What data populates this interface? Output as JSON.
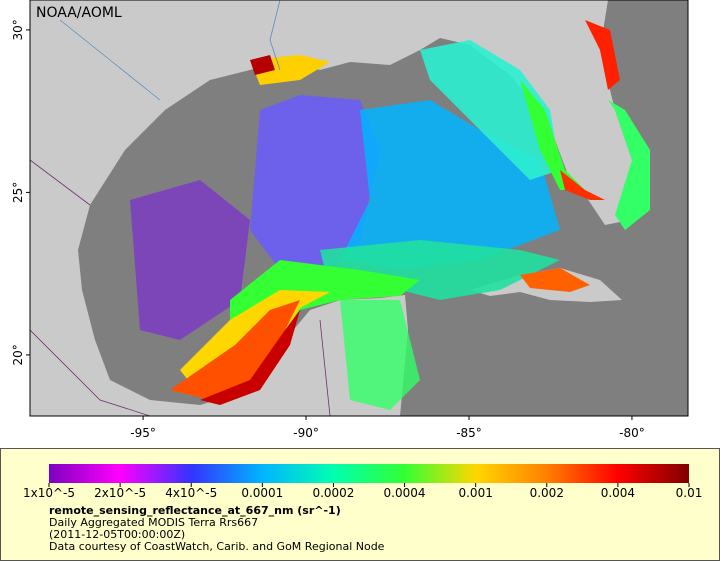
{
  "map": {
    "credit": "NOAA/AOML",
    "xlim": [
      -98.47,
      -78.28
    ],
    "ylim": [
      18.12,
      30.92
    ],
    "xticks": [
      {
        "value": -95,
        "label": "-95°"
      },
      {
        "value": -90,
        "label": "-90°"
      },
      {
        "value": -85,
        "label": "-85°"
      },
      {
        "value": -80,
        "label": "-80°"
      }
    ],
    "yticks": [
      {
        "value": 20,
        "label": "20°"
      },
      {
        "value": 25,
        "label": "25°"
      },
      {
        "value": 30,
        "label": "30°"
      }
    ]
  },
  "colorbar": {
    "colors": [
      "#7f00bf",
      "#ff00ff",
      "#3333ff",
      "#00b4ff",
      "#00ffb0",
      "#33ff33",
      "#ffd700",
      "#ff8000",
      "#ff0000",
      "#800000"
    ],
    "ticks": [
      {
        "value": 1e-05,
        "label": "1x10^-5"
      },
      {
        "value": 2e-05,
        "label": "2x10^-5"
      },
      {
        "value": 4e-05,
        "label": "4x10^-5"
      },
      {
        "value": 0.0001,
        "label": "0.0001"
      },
      {
        "value": 0.0002,
        "label": "0.0002"
      },
      {
        "value": 0.0004,
        "label": "0.0004"
      },
      {
        "value": 0.001,
        "label": "0.001"
      },
      {
        "value": 0.002,
        "label": "0.002"
      },
      {
        "value": 0.004,
        "label": "0.004"
      },
      {
        "value": 0.01,
        "label": "0.01"
      }
    ]
  },
  "legend": {
    "variable": "remote_sensing_reflectance_at_667_nm (sr^-1)",
    "product": "Daily Aggregated MODIS Terra Rrs667",
    "time": "(2011-12-05T00:00:00Z)",
    "credit": "Data courtesy of CoastWatch, Carib. and GoM Regional Node"
  }
}
